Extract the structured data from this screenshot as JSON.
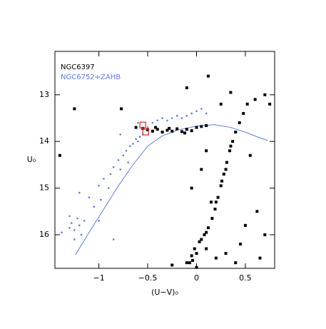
{
  "chart_data": {
    "type": "scatter",
    "x_label": "(U−V)₀",
    "y_label": "U₀",
    "xlim": [
      -1.45,
      0.8
    ],
    "ylim": [
      12.07,
      16.72
    ],
    "y_inverted": true,
    "xticks": [
      {
        "value": -1,
        "label": "−1"
      },
      {
        "value": -0.5,
        "label": "−0.5"
      },
      0,
      0.5
    ],
    "yticks": [
      13,
      14,
      15,
      16
    ],
    "legend": "upper left",
    "series": [
      {
        "name": "NGC6397",
        "color": "#000000",
        "marker": "square",
        "x": [
          -0.55,
          -0.5,
          -0.45,
          -0.4,
          -0.35,
          -0.3,
          -0.25,
          -0.2,
          -0.15,
          -0.1,
          -0.05,
          0,
          0.05,
          0.1,
          -0.42,
          -0.28,
          -0.12,
          -0.62,
          -0.77,
          0.52,
          0.48,
          0.44,
          0.4,
          0.37,
          0.34,
          0.31,
          0.28,
          0.25,
          0.22,
          0.19,
          0.16,
          0.12,
          0.08,
          0.03,
          -0.02,
          -0.05,
          -0.07,
          -0.04,
          0,
          0.05,
          0.1,
          0.35,
          0.3,
          0.26,
          0.2,
          0.1,
          0.05,
          -0.05,
          0.15,
          -0.1,
          0.12,
          0.6,
          0.7,
          0.75,
          0.55,
          0.62,
          0.7,
          0.45,
          0.3,
          0.5,
          0.2,
          0.4,
          0.65,
          0.1,
          -0.25,
          -0.1,
          0,
          -1.25,
          -1.4,
          0.35,
          0.25
        ],
        "y": [
          13.72,
          13.75,
          13.78,
          13.74,
          13.8,
          13.76,
          13.78,
          13.73,
          13.79,
          13.74,
          13.77,
          13.7,
          13.68,
          13.66,
          13.7,
          13.72,
          13.82,
          13.7,
          13.3,
          13.2,
          13.4,
          13.6,
          13.8,
          14,
          14.2,
          14.45,
          14.7,
          14.95,
          15.2,
          15.45,
          15.65,
          15.85,
          16,
          16.15,
          16.3,
          16.45,
          16.6,
          16.55,
          16.4,
          16.1,
          15.95,
          14.1,
          14.6,
          14.85,
          15.3,
          14.2,
          14.6,
          15,
          15.3,
          12.85,
          12.6,
          13.1,
          13,
          13.2,
          14.3,
          15.5,
          16,
          16.2,
          16.4,
          15.8,
          16.5,
          16.6,
          16.5,
          16.3,
          16.65,
          16.6,
          16.7,
          13.3,
          14.3,
          12.95,
          13.2
        ]
      },
      {
        "name": "NGC6752+ZAHB",
        "color": "#5b7fe0",
        "marker": "dot",
        "x": [
          -1.3,
          -1.28,
          -1.25,
          -1.22,
          -1.2,
          -1.18,
          -1.15,
          -1.25,
          -1.3,
          -1.1,
          -1.05,
          -1,
          -0.98,
          -0.95,
          -0.9,
          -0.88,
          -0.85,
          -0.8,
          -0.78,
          -0.75,
          -0.72,
          -0.7,
          -0.68,
          -0.65,
          -0.62,
          -0.6,
          -0.58,
          -0.55,
          -0.6,
          -0.5,
          -0.45,
          -0.4,
          -0.35,
          -0.3,
          -0.25,
          -0.2,
          -0.15,
          -0.1,
          -0.05,
          0,
          0.05,
          0.1,
          -0.78,
          -1.38,
          -1,
          -0.85,
          -1.2
        ],
        "y": [
          15.6,
          15.75,
          15.9,
          15.65,
          15.8,
          16,
          15.7,
          16.1,
          15.85,
          15.2,
          15.4,
          14.95,
          15.25,
          14.8,
          15,
          14.7,
          14.55,
          14.4,
          14.6,
          14.3,
          14.2,
          14.45,
          14.1,
          14.05,
          13.95,
          14,
          13.9,
          13.85,
          13.6,
          13.7,
          13.6,
          13.55,
          13.5,
          13.55,
          13.5,
          13.45,
          13.5,
          13.45,
          13.4,
          13.35,
          13.3,
          13.4,
          13.85,
          15.95,
          15.7,
          16.1,
          15.1
        ]
      }
    ],
    "zahb": {
      "color": "#5b7fe0",
      "x": [
        -1.24,
        -1.1,
        -0.95,
        -0.8,
        -0.65,
        -0.5,
        -0.35,
        -0.2,
        0,
        0.18,
        0.35,
        0.5,
        0.62,
        0.73
      ],
      "y": [
        16.43,
        15.95,
        15.45,
        14.95,
        14.5,
        14.1,
        13.88,
        13.76,
        13.67,
        13.64,
        13.7,
        13.8,
        13.9,
        13.98
      ]
    },
    "highlight": {
      "color": "#e03030",
      "x": [
        -0.55,
        -0.52
      ],
      "y": [
        13.65,
        13.8
      ]
    }
  }
}
